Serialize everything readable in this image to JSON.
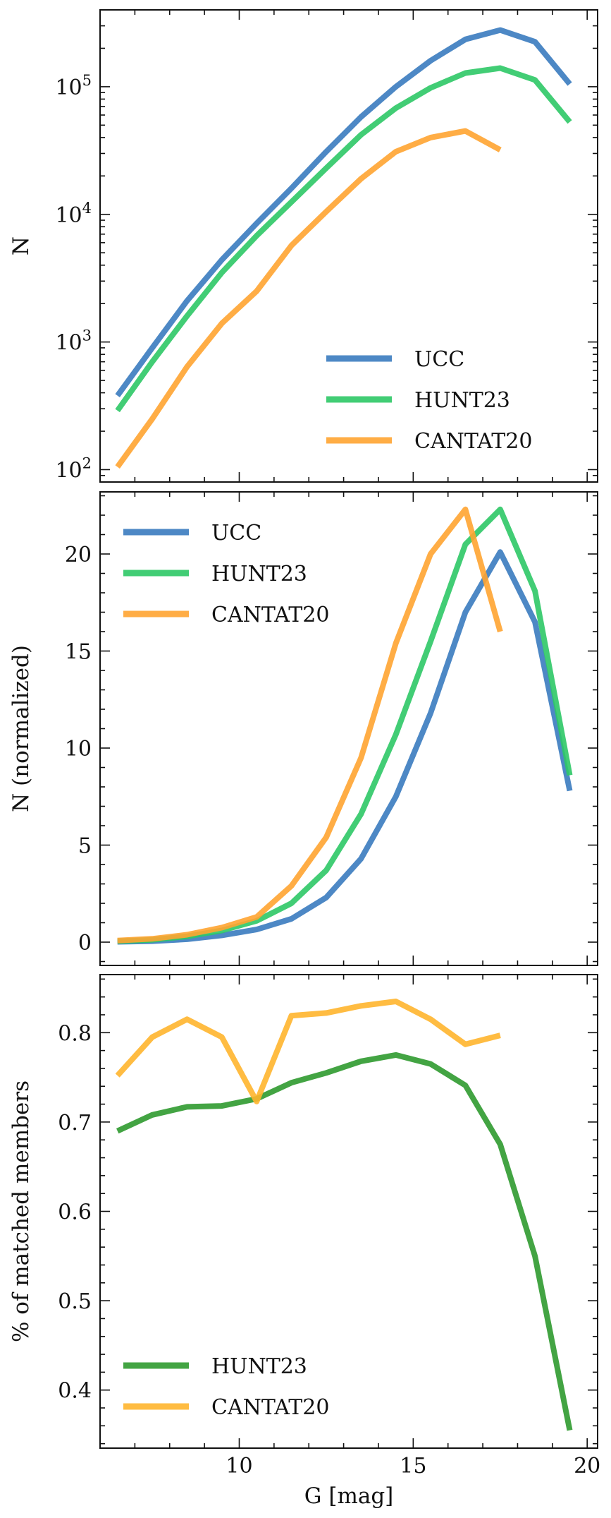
{
  "chart_data": [
    {
      "type": "line",
      "xlabel": "",
      "ylabel": "N",
      "yscale": "log",
      "xlim": [
        6,
        20.3
      ],
      "ylim": [
        80,
        400000
      ],
      "xticks": [
        10,
        15,
        20
      ],
      "yticks": [
        100,
        1000,
        10000,
        100000
      ],
      "ytick_labels": [
        {
          "base": "10",
          "exp": "2"
        },
        {
          "base": "10",
          "exp": "3"
        },
        {
          "base": "10",
          "exp": "4"
        },
        {
          "base": "10",
          "exp": "5"
        }
      ],
      "legend_position": "lower-right",
      "series": [
        {
          "name": "UCC",
          "color": "#3a7bbf",
          "x": [
            6.5,
            7.5,
            8.5,
            9.5,
            10.5,
            11.5,
            12.5,
            13.5,
            14.5,
            15.5,
            16.5,
            17.5,
            18.5,
            19.5
          ],
          "y": [
            380,
            900,
            2100,
            4400,
            8500,
            16000,
            31000,
            58000,
            100000,
            160000,
            235000,
            278000,
            225000,
            105000
          ]
        },
        {
          "name": "HUNT23",
          "color": "#2ec866",
          "x": [
            6.5,
            7.5,
            8.5,
            9.5,
            10.5,
            11.5,
            12.5,
            13.5,
            14.5,
            15.5,
            16.5,
            17.5,
            18.5,
            19.5
          ],
          "y": [
            290,
            700,
            1600,
            3500,
            6800,
            12500,
            23000,
            42000,
            68000,
            98000,
            128000,
            140000,
            113000,
            53000
          ]
        },
        {
          "name": "CANTAT20",
          "color": "#ffa431",
          "x": [
            6.5,
            7.5,
            8.5,
            9.5,
            10.5,
            11.5,
            12.5,
            13.5,
            14.5,
            15.5,
            16.5,
            17.5
          ],
          "y": [
            105,
            250,
            640,
            1400,
            2500,
            5700,
            10500,
            19000,
            31000,
            40000,
            45000,
            32000
          ]
        }
      ]
    },
    {
      "type": "line",
      "xlabel": "",
      "ylabel": "N (normalized)",
      "xlim": [
        6,
        20.3
      ],
      "ylim": [
        -1.2,
        23.2
      ],
      "xticks": [
        10,
        15,
        20
      ],
      "yticks": [
        0,
        5,
        10,
        15,
        20
      ],
      "legend_position": "upper-left",
      "series": [
        {
          "name": "UCC",
          "color": "#3a7bbf",
          "x": [
            6.5,
            7.5,
            8.5,
            9.5,
            10.5,
            11.5,
            12.5,
            13.5,
            14.5,
            15.5,
            16.5,
            17.5,
            18.5,
            19.5
          ],
          "y": [
            0.02,
            0.05,
            0.15,
            0.35,
            0.65,
            1.2,
            2.3,
            4.3,
            7.5,
            11.8,
            17.0,
            20.1,
            16.5,
            7.8
          ]
        },
        {
          "name": "HUNT23",
          "color": "#2ec866",
          "x": [
            6.5,
            7.5,
            8.5,
            9.5,
            10.5,
            11.5,
            12.5,
            13.5,
            14.5,
            15.5,
            16.5,
            17.5,
            18.5,
            19.5
          ],
          "y": [
            0.05,
            0.12,
            0.3,
            0.6,
            1.1,
            2.0,
            3.7,
            6.6,
            10.7,
            15.5,
            20.5,
            22.3,
            18.1,
            8.6
          ]
        },
        {
          "name": "CANTAT20",
          "color": "#ffa431",
          "x": [
            6.5,
            7.5,
            8.5,
            9.5,
            10.5,
            11.5,
            12.5,
            13.5,
            14.5,
            15.5,
            16.5,
            17.5
          ],
          "y": [
            0.08,
            0.17,
            0.38,
            0.75,
            1.3,
            2.9,
            5.4,
            9.5,
            15.4,
            20.0,
            22.3,
            16.0
          ]
        }
      ]
    },
    {
      "type": "line",
      "xlabel": "G [mag]",
      "ylabel": "% of matched members",
      "xlim": [
        6,
        20.3
      ],
      "ylim": [
        0.335,
        0.865
      ],
      "xticks": [
        10,
        15,
        20
      ],
      "yticks": [
        0.4,
        0.5,
        0.6,
        0.7,
        0.8
      ],
      "ytick_labels": [
        "0.4",
        "0.5",
        "0.6",
        "0.7",
        "0.8"
      ],
      "legend_position": "lower-left",
      "series": [
        {
          "name": "HUNT23",
          "color": "#2f9a2f",
          "x": [
            6.5,
            7.5,
            8.5,
            9.5,
            10.5,
            11.5,
            12.5,
            13.5,
            14.5,
            15.5,
            16.5,
            17.5,
            18.5,
            19.5
          ],
          "y": [
            0.69,
            0.708,
            0.717,
            0.718,
            0.726,
            0.744,
            0.755,
            0.768,
            0.775,
            0.765,
            0.741,
            0.675,
            0.55,
            0.355
          ]
        },
        {
          "name": "CANTAT20",
          "color": "#ffb52e",
          "x": [
            6.5,
            7.5,
            8.5,
            9.5,
            10.5,
            11.5,
            12.5,
            13.5,
            14.5,
            15.5,
            16.5,
            17.5
          ],
          "y": [
            0.752,
            0.795,
            0.815,
            0.795,
            0.723,
            0.819,
            0.822,
            0.83,
            0.835,
            0.815,
            0.787,
            0.797
          ]
        }
      ]
    }
  ]
}
